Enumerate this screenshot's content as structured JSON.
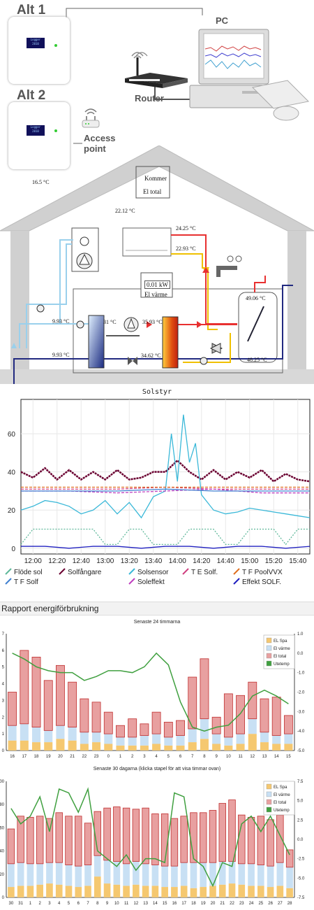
{
  "top": {
    "alt1": "Alt 1",
    "alt2": "Alt 2",
    "pc": "PC",
    "router": "Router",
    "access_point": [
      "Access",
      "point"
    ],
    "screen1": [
      "Logger",
      "2010"
    ],
    "screen2": [
      "Logger",
      "2010"
    ]
  },
  "house": {
    "outdoor_temp": "16.5 °C",
    "indoor_temp": "22.12 °C",
    "kommer": "Kommer",
    "el_total": "El total",
    "power_value": "0.01 kW",
    "el_varme": "El värme",
    "t_2425": "24.25 °C",
    "t_2293": "22.93 °C",
    "t_4906": "49.06 °C",
    "t_4825": "48.25 °C",
    "t_993a": "9.93 °C",
    "t_993b": "9.93 °C",
    "t_31": "31 °C",
    "t_3593": "35.93 °C",
    "t_3462": "34.62 °C"
  },
  "solar_chart": {
    "chart_data": {
      "type": "line",
      "title": "Solstyr",
      "x_ticks": [
        "12:00",
        "12:20",
        "12:40",
        "13:00",
        "13:20",
        "13:40",
        "14:00",
        "14:20",
        "14:40",
        "15:00",
        "15:20",
        "15:40"
      ],
      "y_ticks": [
        0,
        20,
        40,
        60
      ],
      "ylim": [
        -3,
        78
      ],
      "xlim": [
        0,
        240
      ],
      "legend_position": "bottom",
      "grid": true,
      "series": [
        {
          "name": "Flöde sol",
          "color": "#5fb89a",
          "x": [
            0,
            10,
            20,
            30,
            40,
            50,
            60,
            70,
            80,
            90,
            100,
            110,
            120,
            130,
            140,
            150,
            160,
            170,
            180,
            190,
            200,
            210,
            220,
            230,
            240
          ],
          "y": [
            2,
            10,
            10,
            10,
            10,
            10,
            10,
            2,
            2,
            10,
            10,
            2,
            2,
            2,
            10,
            10,
            10,
            2,
            2,
            10,
            10,
            10,
            2,
            10,
            10
          ]
        },
        {
          "name": "Solfångare",
          "color": "#6a0030",
          "x": [
            0,
            10,
            20,
            30,
            40,
            50,
            60,
            70,
            80,
            90,
            100,
            110,
            120,
            130,
            140,
            150,
            160,
            170,
            180,
            190,
            200,
            210,
            220,
            230,
            240
          ],
          "y": [
            40,
            37,
            42,
            36,
            41,
            36,
            40,
            36,
            41,
            36,
            37,
            40,
            40,
            46,
            40,
            36,
            41,
            36,
            40,
            37,
            41,
            35,
            39,
            36,
            35
          ]
        },
        {
          "name": "Solsensor",
          "color": "#3ab8d8",
          "x": [
            0,
            10,
            20,
            30,
            40,
            50,
            60,
            70,
            80,
            90,
            100,
            110,
            120,
            125,
            130,
            135,
            140,
            145,
            150,
            160,
            170,
            180,
            190,
            200,
            210,
            220,
            230,
            240
          ],
          "y": [
            20,
            22,
            25,
            24,
            22,
            18,
            20,
            25,
            18,
            24,
            16,
            27,
            30,
            60,
            35,
            70,
            45,
            55,
            28,
            20,
            18,
            19,
            21,
            20,
            19,
            18,
            17,
            16
          ]
        },
        {
          "name": "T E Solf.",
          "color": "#d04080",
          "x": [
            0,
            40,
            80,
            120,
            160,
            200,
            240
          ],
          "y": [
            31,
            31,
            31,
            32,
            31,
            31,
            31
          ]
        },
        {
          "name": "T F PoolVVX",
          "color": "#e07020",
          "x": [
            0,
            40,
            80,
            120,
            160,
            200,
            240
          ],
          "y": [
            32,
            32,
            32,
            32,
            32,
            32,
            32
          ]
        },
        {
          "name": "Soleffekt",
          "color": "#c040c0",
          "x": [
            0,
            40,
            80,
            120,
            160,
            200,
            240
          ],
          "y": [
            30,
            30,
            29,
            30,
            31,
            29,
            29
          ]
        },
        {
          "name": "T F Solf",
          "color": "#4080d0",
          "x": [
            0,
            40,
            80,
            120,
            160,
            200,
            240
          ],
          "y": [
            30,
            30,
            30,
            31,
            30,
            30,
            30
          ]
        },
        {
          "name": "Effekt SOLF.",
          "color": "#2020c0",
          "x": [
            0,
            20,
            40,
            60,
            80,
            100,
            120,
            140,
            160,
            180,
            200,
            220,
            240
          ],
          "y": [
            1,
            1,
            0,
            1,
            1,
            0,
            1,
            1,
            0,
            1,
            1,
            0,
            1
          ]
        }
      ]
    }
  },
  "report": {
    "header": "Rapport energiförbrukning"
  },
  "charts": [
    {
      "chart_data": {
        "type": "bar",
        "title": "Senaste 24 timmarna",
        "categories": [
          "16",
          "17",
          "18",
          "19",
          "20",
          "21",
          "22",
          "23",
          "0",
          "1",
          "2",
          "3",
          "4",
          "5",
          "6",
          "7",
          "8",
          "9",
          "10",
          "11",
          "12",
          "13",
          "14",
          "15"
        ],
        "ylim": [
          0,
          7
        ],
        "y_ticks": [
          "0",
          "1",
          "2",
          "3",
          "4",
          "5",
          "6",
          "7"
        ],
        "y2lim": [
          -5.0,
          1.0
        ],
        "y2_ticks": [
          "1.0",
          "0.0",
          "-1.0",
          "-2.0",
          "-3.0",
          "-4.0",
          "-5.0"
        ],
        "legend_position": "top-right",
        "series": [
          {
            "name": "EL Spa",
            "color": "#f5c870",
            "values": [
              0.6,
              0.6,
              0.5,
              0.5,
              0.7,
              0.6,
              0.4,
              0.5,
              0.4,
              0.3,
              0.3,
              0.3,
              0.4,
              0.3,
              0.3,
              0.5,
              0.7,
              0.4,
              0.3,
              0.4,
              1.0,
              0.5,
              0.4,
              0.4
            ]
          },
          {
            "name": "El värme",
            "color": "#c8e0f4",
            "values": [
              0.9,
              1.0,
              0.9,
              0.7,
              0.8,
              0.8,
              0.7,
              0.6,
              0.6,
              0.5,
              0.5,
              0.6,
              0.6,
              0.5,
              0.6,
              0.8,
              1.2,
              0.6,
              0.5,
              0.6,
              0.9,
              0.6,
              0.5,
              0.6
            ]
          },
          {
            "name": "El total",
            "color": "#e8a0a0",
            "values": [
              2.0,
              4.4,
              4.2,
              3.0,
              3.6,
              2.7,
              2.0,
              1.8,
              1.3,
              0.7,
              1.1,
              0.7,
              1.3,
              0.9,
              0.9,
              3.1,
              3.6,
              1.0,
              2.6,
              2.3,
              2.2,
              2.0,
              2.3,
              1.1
            ]
          },
          {
            "name": "Utetemp",
            "color": "#40a040",
            "values": [
              0.0,
              -0.3,
              -0.7,
              -0.9,
              -1.0,
              -1.0,
              -1.4,
              -1.2,
              -0.9,
              -0.9,
              -1.0,
              -0.7,
              0.0,
              -0.6,
              -2.5,
              -3.8,
              -4.0,
              -3.8,
              -3.7,
              -3.1,
              -2.2,
              -1.9,
              -2.2,
              -2.6
            ]
          }
        ]
      }
    },
    {
      "chart_data": {
        "type": "bar",
        "title": "Senaste 30 dagarna (klicka stapel för att visa timmar ovan)",
        "categories": [
          "30",
          "31",
          "1",
          "2",
          "3",
          "4",
          "5",
          "6",
          "7",
          "8",
          "9",
          "10",
          "11",
          "12",
          "13",
          "14",
          "15",
          "16",
          "17",
          "18",
          "19",
          "20",
          "21",
          "22",
          "23",
          "24",
          "25",
          "26",
          "27",
          "28"
        ],
        "ylim": [
          0,
          100
        ],
        "y_ticks": [
          "0",
          "20",
          "40",
          "60",
          "80",
          "100"
        ],
        "y2lim": [
          -7.5,
          7.5
        ],
        "y2_ticks": [
          "7.5",
          "5.0",
          "2.5",
          "0.0",
          "-2.5",
          "-5.0",
          "-7.5"
        ],
        "legend_position": "top-right",
        "series": [
          {
            "name": "EL Spa",
            "color": "#f5c870",
            "values": [
              9,
              10,
              10,
              11,
              12,
              11,
              10,
              9,
              10,
              18,
              12,
              11,
              10,
              11,
              10,
              10,
              9,
              9,
              10,
              8,
              9,
              10,
              11,
              12,
              11,
              10,
              10,
              9,
              10,
              8
            ]
          },
          {
            "name": "El värme",
            "color": "#c8e0f4",
            "values": [
              20,
              20,
              19,
              18,
              18,
              19,
              18,
              18,
              18,
              18,
              20,
              20,
              19,
              20,
              19,
              18,
              18,
              18,
              20,
              22,
              21,
              20,
              20,
              19,
              18,
              19,
              18,
              18,
              20,
              18
            ]
          },
          {
            "name": "El total",
            "color": "#e8a0a0",
            "values": [
              30,
              40,
              40,
              41,
              38,
              43,
              42,
              43,
              36,
              38,
              45,
              47,
              48,
              45,
              48,
              44,
              45,
              41,
              40,
              43,
              43,
              45,
              50,
              53,
              42,
              40,
              42,
              40,
              41,
              15
            ]
          },
          {
            "name": "Utetemp",
            "color": "#40a040",
            "values": [
              4.0,
              2.0,
              3.0,
              5.5,
              1.0,
              6.5,
              6.0,
              3.5,
              6.5,
              -1.5,
              -2.5,
              -3.5,
              -2.0,
              -4.0,
              -2.5,
              -2.5,
              -3.0,
              6.0,
              5.5,
              -2.5,
              -3.5,
              -6.0,
              -3.0,
              -3.5,
              2.0,
              3.0,
              1.0,
              3.0,
              0.5,
              -2.0
            ]
          }
        ]
      }
    }
  ]
}
